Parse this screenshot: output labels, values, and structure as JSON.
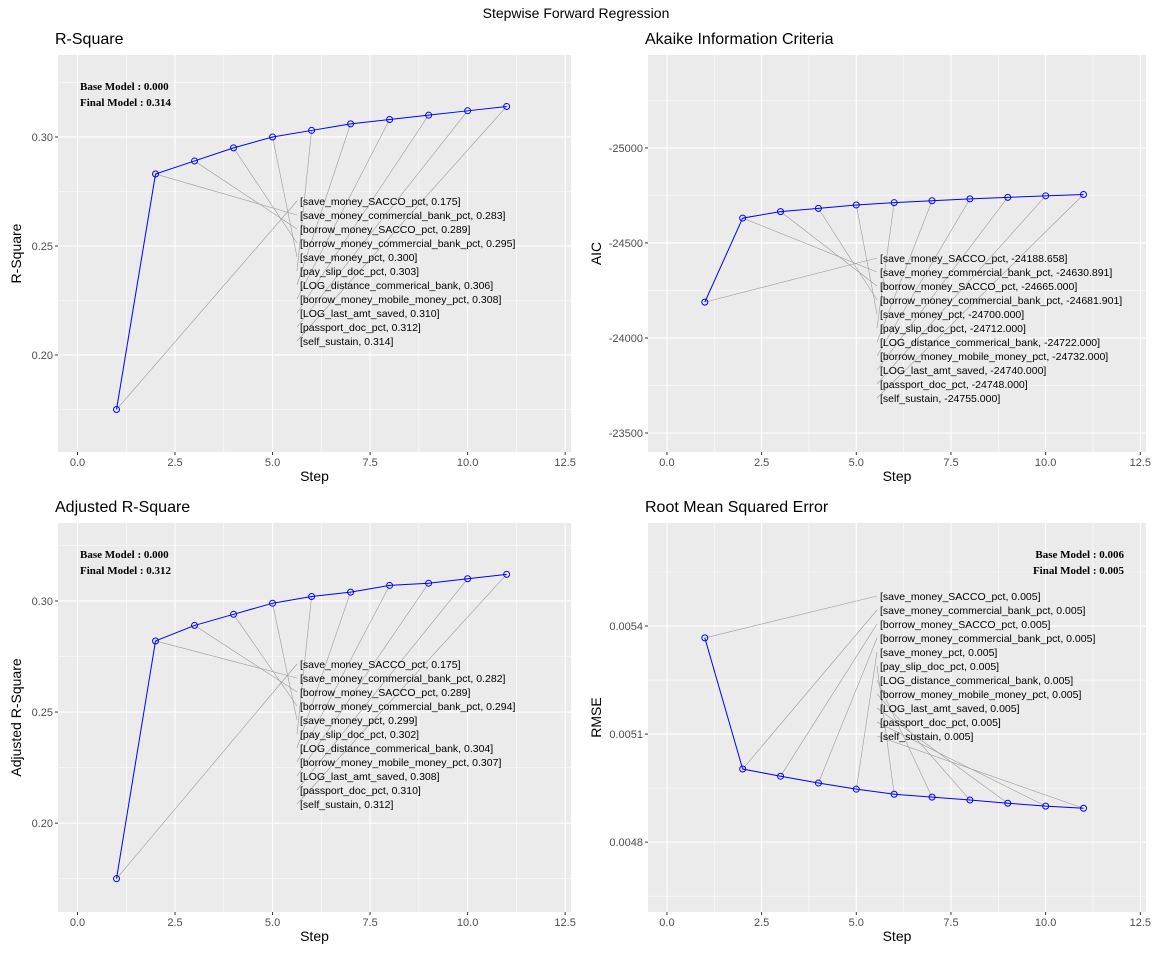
{
  "title": "Stepwise Forward Regression",
  "steps": [
    1,
    2,
    3,
    4,
    5,
    6,
    7,
    8,
    9,
    10,
    11
  ],
  "variables": [
    "save_money_SACCO_pct",
    "save_money_commercial_bank_pct",
    "borrow_money_SACCO_pct",
    "borrow_money_commercial_bank_pct",
    "save_money_pct",
    "pay_slip_doc_pct",
    "LOG_distance_commerical_bank",
    "borrow_money_mobile_money_pct",
    "LOG_last_amt_saved",
    "passport_doc_pct",
    "self_sustain"
  ],
  "line_color": "#0000FF",
  "panel_background": "#EBEBEB",
  "chart_data": [
    {
      "type": "line",
      "title": "R-Square",
      "xlabel": "Step",
      "ylabel": "R-Square",
      "x": [
        1,
        2,
        3,
        4,
        5,
        6,
        7,
        8,
        9,
        10,
        11
      ],
      "values": [
        0.175,
        0.283,
        0.289,
        0.295,
        0.3,
        0.303,
        0.306,
        0.308,
        0.31,
        0.312,
        0.314
      ],
      "xlim": [
        -0.5,
        12.65
      ],
      "ylim": [
        0.1555,
        0.3376
      ],
      "reverse_y": false,
      "xticks": [
        0,
        2.5,
        5,
        7.5,
        10,
        12.5
      ],
      "xtick_labels": [
        "0.0",
        "2.5",
        "5.0",
        "7.5",
        "10.0",
        "12.5"
      ],
      "yticks": [
        0.2,
        0.25,
        0.3
      ],
      "ytick_labels": [
        "0.20",
        "0.25",
        "0.30"
      ],
      "annotation": [
        "Base Model  : 0.000",
        "Final Model : 0.314"
      ],
      "annotation_position": "top-left",
      "grid": true
    },
    {
      "type": "line",
      "title": "Akaike Information Criteria",
      "xlabel": "Step",
      "ylabel": "AIC",
      "x": [
        1,
        2,
        3,
        4,
        5,
        6,
        7,
        8,
        9,
        10,
        11
      ],
      "values": [
        -24188.658,
        -24630.891,
        -24665,
        -24681.901,
        -24700,
        -24712,
        -24722,
        -24732,
        -24740,
        -24748,
        -24755
      ],
      "xlim": [
        -0.5,
        12.65
      ],
      "ylim": [
        -25489,
        -23400
      ],
      "reverse_y": true,
      "xticks": [
        0,
        2.5,
        5,
        7.5,
        10,
        12.5
      ],
      "xtick_labels": [
        "0.0",
        "2.5",
        "5.0",
        "7.5",
        "10.0",
        "12.5"
      ],
      "yticks": [
        -25000,
        -24500,
        -24000,
        -23500
      ],
      "ytick_labels": [
        "-25000",
        "-24500",
        "-24000",
        "-23500"
      ],
      "annotation": [],
      "grid": true
    },
    {
      "type": "line",
      "title": "Adjusted R-Square",
      "xlabel": "Step",
      "ylabel": "Adjusted R-Square",
      "x": [
        1,
        2,
        3,
        4,
        5,
        6,
        7,
        8,
        9,
        10,
        11
      ],
      "values": [
        0.175,
        0.282,
        0.289,
        0.294,
        0.299,
        0.302,
        0.304,
        0.307,
        0.308,
        0.31,
        0.312
      ],
      "xlim": [
        -0.5,
        12.65
      ],
      "ylim": [
        0.16,
        0.3351
      ],
      "reverse_y": false,
      "xticks": [
        0,
        2.5,
        5,
        7.5,
        10,
        12.5
      ],
      "xtick_labels": [
        "0.0",
        "2.5",
        "5.0",
        "7.5",
        "10.0",
        "12.5"
      ],
      "yticks": [
        0.2,
        0.25,
        0.3
      ],
      "ytick_labels": [
        "0.20",
        "0.25",
        "0.30"
      ],
      "annotation": [
        "Base Model  : 0.000",
        "Final Model : 0.312"
      ],
      "annotation_position": "top-left",
      "grid": true
    },
    {
      "type": "line",
      "title": "Root Mean Squared Error",
      "xlabel": "Step",
      "ylabel": "RMSE",
      "x": [
        1,
        2,
        3,
        4,
        5,
        6,
        7,
        8,
        9,
        10,
        11
      ],
      "values": [
        0.005367,
        0.005003,
        0.004983,
        0.004964,
        0.004947,
        0.004933,
        0.004925,
        0.004917,
        0.004908,
        0.0049,
        0.004894
      ],
      "xlim": [
        -0.5,
        12.65
      ],
      "ylim": [
        0.004606,
        0.005686
      ],
      "reverse_y": false,
      "xticks": [
        0,
        2.5,
        5,
        7.5,
        10,
        12.5
      ],
      "xtick_labels": [
        "0.0",
        "2.5",
        "5.0",
        "7.5",
        "10.0",
        "12.5"
      ],
      "yticks": [
        0.0048,
        0.0051,
        0.0054
      ],
      "ytick_labels": [
        "0.0048",
        "0.0051",
        "0.0054"
      ],
      "annotation": [
        "Base Model  : 0.006",
        "Final Model : 0.005"
      ],
      "annotation_position": "top-right",
      "grid": true
    }
  ]
}
